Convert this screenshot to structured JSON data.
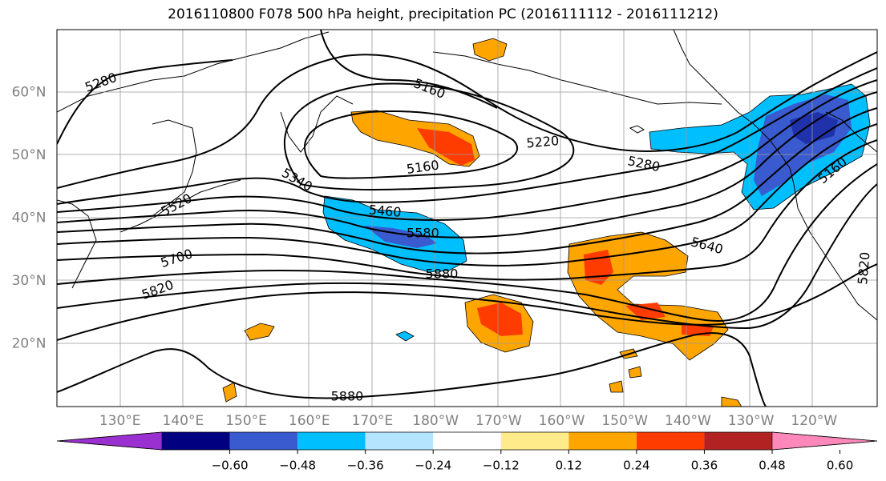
{
  "title": "2016110800 F078 500 hPa height, precipitation PC (2016111112 - 2016111212)",
  "lat_labels": [
    {
      "text": "60°N",
      "lat": 60
    },
    {
      "text": "50°N",
      "lat": 50
    },
    {
      "text": "40°N",
      "lat": 40
    },
    {
      "text": "30°N",
      "lat": 30
    },
    {
      "text": "20°N",
      "lat": 20
    }
  ],
  "lon_labels": [
    {
      "text": "130°E",
      "lon": 130
    },
    {
      "text": "140°E",
      "lon": 140
    },
    {
      "text": "150°E",
      "lon": 150
    },
    {
      "text": "160°E",
      "lon": 160
    },
    {
      "text": "170°E",
      "lon": 170
    },
    {
      "text": "180°W",
      "lon": 180
    },
    {
      "text": "170°W",
      "lon": 190
    },
    {
      "text": "160°W",
      "lon": 200
    },
    {
      "text": "150°W",
      "lon": 210
    },
    {
      "text": "140°W",
      "lon": 220
    },
    {
      "text": "130°W",
      "lon": 230
    },
    {
      "text": "120°W",
      "lon": 240
    }
  ],
  "contour_labels": [
    {
      "text": "5280",
      "lon": 127,
      "lat": 61.5,
      "rot": -20
    },
    {
      "text": "5160",
      "lon": 179,
      "lat": 60.5,
      "rot": 22
    },
    {
      "text": "5220",
      "lon": 197,
      "lat": 52.0,
      "rot": -5
    },
    {
      "text": "5160",
      "lon": 178,
      "lat": 48.0,
      "rot": -8
    },
    {
      "text": "5280",
      "lon": 213,
      "lat": 48.5,
      "rot": 12
    },
    {
      "text": "5340",
      "lon": 158,
      "lat": 46.0,
      "rot": 30
    },
    {
      "text": "5460",
      "lon": 172,
      "lat": 41.0,
      "rot": 5
    },
    {
      "text": "5580",
      "lon": 178,
      "lat": 37.5,
      "rot": 0
    },
    {
      "text": "5520",
      "lon": 139,
      "lat": 42.0,
      "rot": -28
    },
    {
      "text": "5700",
      "lon": 139,
      "lat": 33.5,
      "rot": -18
    },
    {
      "text": "5820",
      "lon": 136,
      "lat": 28.5,
      "rot": -20
    },
    {
      "text": "5880",
      "lon": 181,
      "lat": 31.0,
      "rot": 0
    },
    {
      "text": "5640",
      "lon": 223,
      "lat": 35.5,
      "rot": 15
    },
    {
      "text": "5160",
      "lon": 243,
      "lat": 47.5,
      "rot": -40
    },
    {
      "text": "5820",
      "lon": 248,
      "lat": 32.0,
      "rot": -85
    },
    {
      "text": "5880",
      "lon": 166,
      "lat": 11.5,
      "rot": 0
    }
  ],
  "colorbar": {
    "colors": [
      "#9b30d0",
      "#000080",
      "#3a5bd0",
      "#00bfff",
      "#b4e4ff",
      "#ffffff",
      "#ffeb8a",
      "#ffa500",
      "#ff3c00",
      "#b22222",
      "#ff88bb"
    ],
    "ticks": [
      "−0.60",
      "−0.48",
      "−0.36",
      "−0.24",
      "−0.12",
      "0.12",
      "0.24",
      "0.36",
      "0.48",
      "0.60"
    ]
  }
}
